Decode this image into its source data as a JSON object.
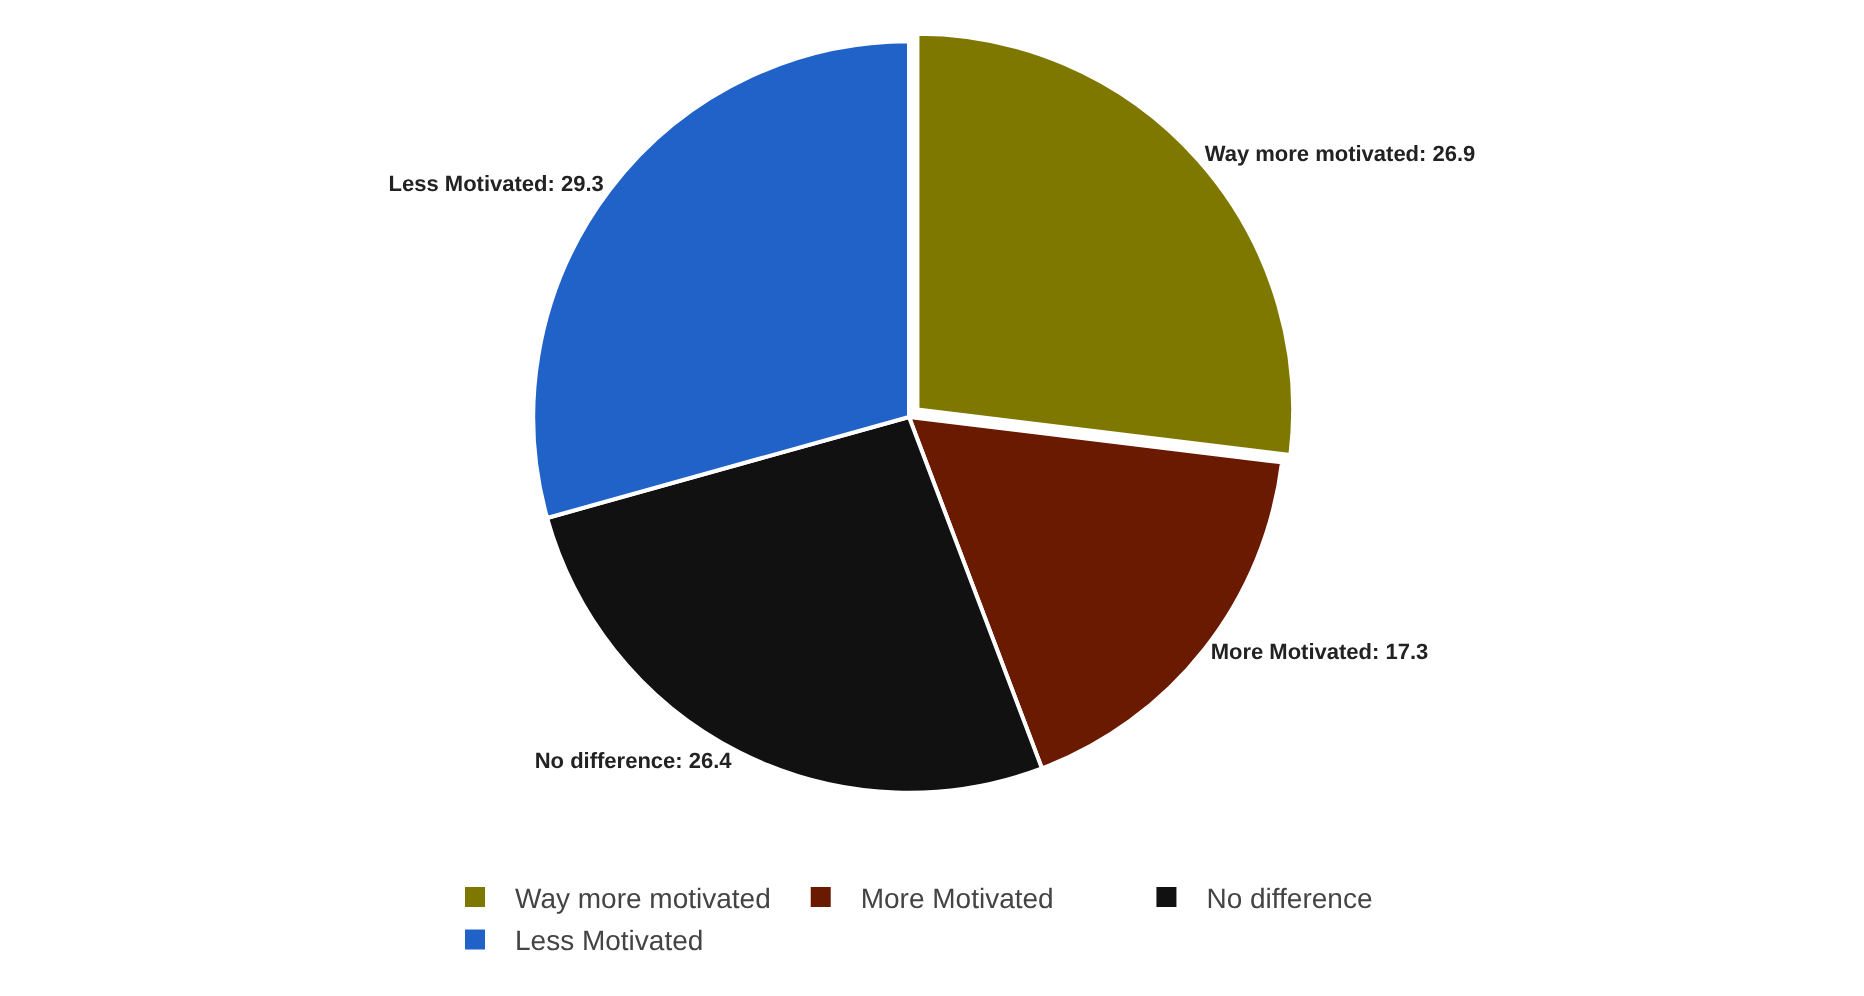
{
  "chart_data": {
    "type": "pie",
    "categories": [
      "Way more motivated",
      "More Motivated",
      "No difference",
      "Less Motivated"
    ],
    "values": [
      26.9,
      17.3,
      26.4,
      29.3
    ],
    "colors": [
      "#7f7800",
      "#6a1a00",
      "#111111",
      "#2162c9"
    ],
    "value_labels": [
      "Way more motivated: 26.9",
      "More Motivated: 17.3",
      "No difference: 26.4",
      "Less Motivated: 29.3"
    ],
    "legend": "bottom"
  }
}
